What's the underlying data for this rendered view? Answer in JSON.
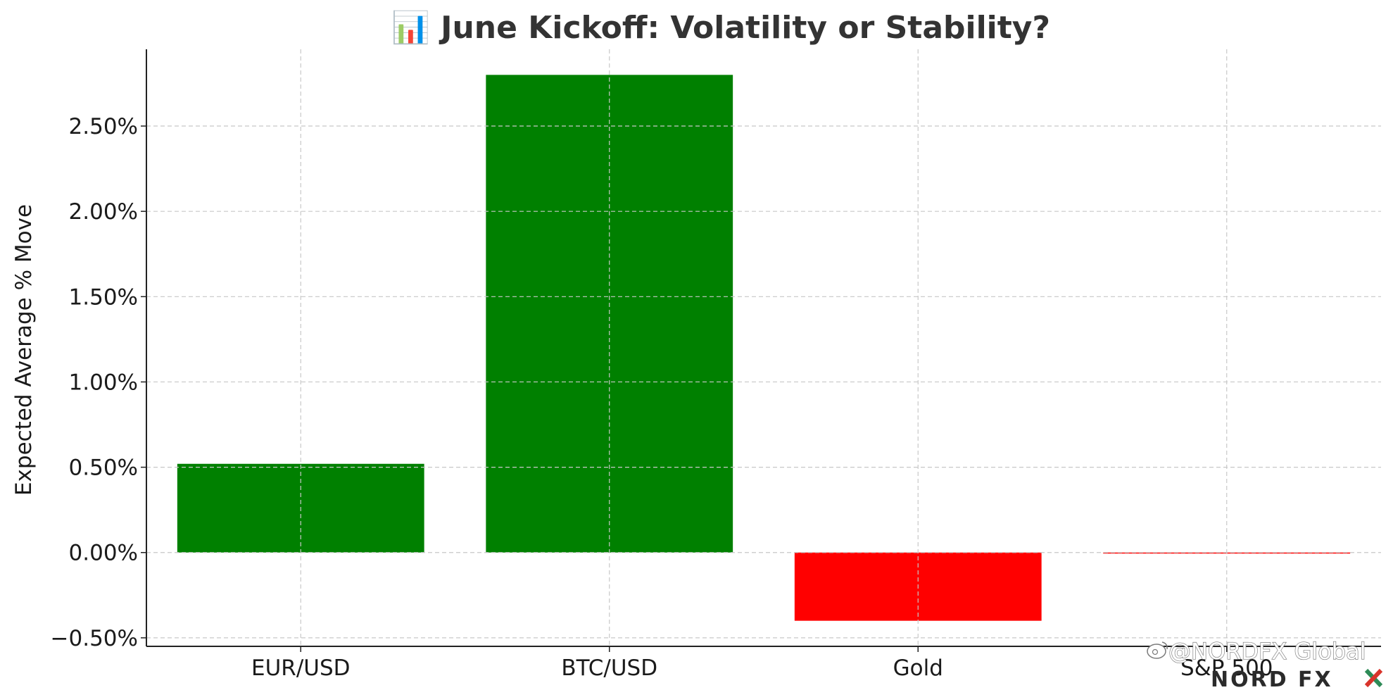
{
  "chart_data": {
    "type": "bar",
    "title": "📊 June Kickoff: Volatility or Stability?",
    "xlabel": "",
    "ylabel": "Expected Average % Move",
    "categories": [
      "EUR/USD",
      "BTC/USD",
      "Gold",
      "S&P 500"
    ],
    "values": [
      0.52,
      2.8,
      -0.4,
      0.0
    ],
    "bar_colors": [
      "#008000",
      "#008000",
      "#ff0000",
      "#ff0000"
    ],
    "ylim": [
      -0.55,
      2.95
    ],
    "yticks": [
      -0.5,
      0.0,
      0.5,
      1.0,
      1.5,
      2.0,
      2.5
    ],
    "ytick_labels": [
      "−0.50%",
      "0.00%",
      "0.50%",
      "1.00%",
      "1.50%",
      "2.00%",
      "2.50%"
    ],
    "grid": true,
    "legend": "none"
  },
  "watermark": {
    "text": "@NORDFX Global"
  },
  "logo": {
    "text": "NORD FX",
    "colors": {
      "text": "#2b2b2b",
      "accent_green": "#2e8b57",
      "accent_red": "#d9342b"
    }
  }
}
